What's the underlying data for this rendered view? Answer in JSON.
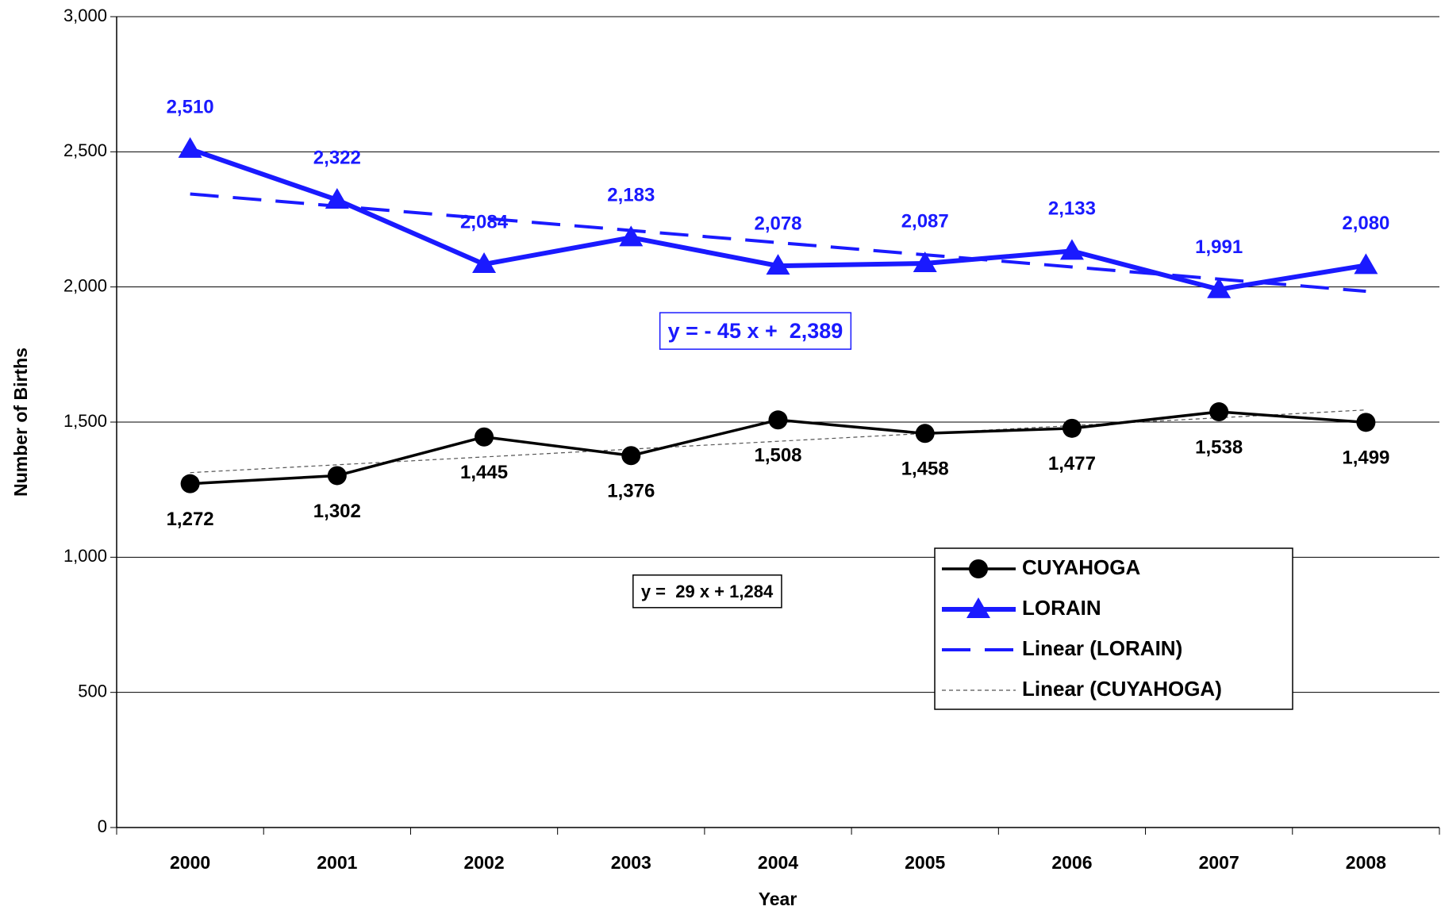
{
  "chart_data": {
    "type": "line",
    "y_axis_label": "Number of Births",
    "x_axis_label": "Year",
    "categories": [
      "2000",
      "2001",
      "2002",
      "2003",
      "2004",
      "2005",
      "2006",
      "2007",
      "2008"
    ],
    "series": [
      {
        "name": "CUYAHOGA",
        "color": "#000000",
        "marker": "circle",
        "style": "solid",
        "values": [
          1272,
          1302,
          1445,
          1376,
          1508,
          1458,
          1477,
          1538,
          1499
        ],
        "value_labels": [
          "1,272",
          "1,302",
          "1,445",
          "1,376",
          "1,508",
          "1,458",
          "1,477",
          "1,538",
          "1,499"
        ]
      },
      {
        "name": "LORAIN",
        "color": "#1a1aff",
        "marker": "triangle",
        "style": "solid",
        "values": [
          2510,
          2322,
          2084,
          2183,
          2078,
          2087,
          2133,
          1991,
          2080
        ],
        "value_labels": [
          "2,510",
          "2,322",
          "2,084",
          "2,183",
          "2,078",
          "2,087",
          "2,133",
          "1,991",
          "2,080"
        ]
      },
      {
        "name": "Linear (LORAIN)",
        "color": "#1a1aff",
        "style": "dashed",
        "values": [
          2344,
          2299,
          2254,
          2209,
          2164,
          2119,
          2074,
          2029,
          1984
        ]
      },
      {
        "name": "Linear (CUYAHOGA)",
        "color": "#555555",
        "style": "dotted",
        "values": [
          1313,
          1342,
          1371,
          1400,
          1429,
          1458,
          1487,
          1516,
          1545
        ]
      }
    ],
    "annotations": [
      {
        "text": "y = - 45 x +  2,389",
        "color": "#1a1aff"
      },
      {
        "text": "y =  29 x + 1,284",
        "color": "#000000"
      }
    ],
    "ylim": [
      0,
      3000
    ],
    "yticks": [
      {
        "value": 0,
        "label": "0"
      },
      {
        "value": 500,
        "label": "500"
      },
      {
        "value": 1000,
        "label": "1,000"
      },
      {
        "value": 1500,
        "label": "1,500"
      },
      {
        "value": 2000,
        "label": "2,000"
      },
      {
        "value": 2500,
        "label": "2,500"
      },
      {
        "value": 3000,
        "label": "3,000"
      }
    ],
    "grid": true,
    "legend": "lower right"
  }
}
